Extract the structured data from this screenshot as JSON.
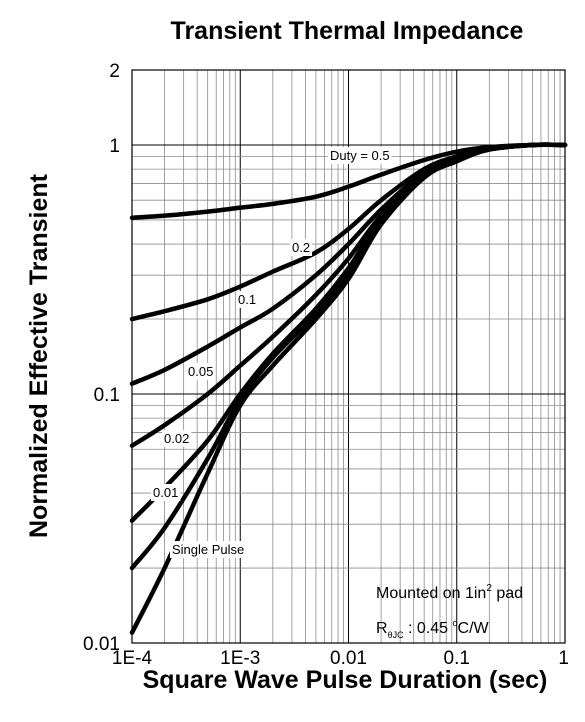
{
  "chart_data": {
    "type": "line",
    "title": "Transient Thermal Impedance",
    "xlabel": "Square Wave Pulse Duration (sec)",
    "ylabel": "Normalized Effective Transient",
    "x_scale": "log",
    "y_scale": "log",
    "xlim": [
      0.0001,
      1
    ],
    "ylim": [
      0.01,
      2
    ],
    "grid": true,
    "x_ticks": [
      "1E-4",
      "1E-3",
      "0.01",
      "0.1",
      "1"
    ],
    "y_ticks": [
      "0.01",
      "0.1",
      "1",
      "2"
    ],
    "series": [
      {
        "name": "Duty = 0.5",
        "x": [
          0.0001,
          0.0002,
          0.0005,
          0.001,
          0.002,
          0.005,
          0.01,
          0.02,
          0.05,
          0.1,
          0.2,
          0.5,
          1
        ],
        "y": [
          0.51,
          0.52,
          0.54,
          0.56,
          0.58,
          0.62,
          0.68,
          0.76,
          0.87,
          0.94,
          0.98,
          1.0,
          1.0
        ]
      },
      {
        "name": "0.2",
        "x": [
          0.0001,
          0.0002,
          0.0005,
          0.001,
          0.002,
          0.005,
          0.01,
          0.02,
          0.05,
          0.1,
          0.2,
          0.5,
          1
        ],
        "y": [
          0.2,
          0.215,
          0.24,
          0.27,
          0.31,
          0.37,
          0.46,
          0.6,
          0.8,
          0.9,
          0.97,
          1.0,
          1.0
        ]
      },
      {
        "name": "0.1",
        "x": [
          0.0001,
          0.0002,
          0.0005,
          0.001,
          0.002,
          0.005,
          0.01,
          0.02,
          0.05,
          0.1,
          0.2,
          0.5,
          1
        ],
        "y": [
          0.11,
          0.125,
          0.155,
          0.185,
          0.22,
          0.3,
          0.4,
          0.55,
          0.78,
          0.89,
          0.96,
          1.0,
          1.0
        ]
      },
      {
        "name": "0.05",
        "x": [
          0.0001,
          0.0002,
          0.0005,
          0.001,
          0.002,
          0.005,
          0.01,
          0.02,
          0.05,
          0.1,
          0.2,
          0.5,
          1
        ],
        "y": [
          0.062,
          0.075,
          0.1,
          0.13,
          0.17,
          0.25,
          0.35,
          0.52,
          0.76,
          0.88,
          0.96,
          1.0,
          1.0
        ]
      },
      {
        "name": "0.02",
        "x": [
          0.0001,
          0.0002,
          0.0005,
          0.001,
          0.002,
          0.005,
          0.01,
          0.02,
          0.05,
          0.1,
          0.2,
          0.5,
          1
        ],
        "y": [
          0.031,
          0.042,
          0.065,
          0.1,
          0.145,
          0.22,
          0.32,
          0.5,
          0.75,
          0.87,
          0.96,
          1.0,
          1.0
        ]
      },
      {
        "name": "0.01",
        "x": [
          0.0001,
          0.0002,
          0.0005,
          0.001,
          0.002,
          0.005,
          0.01,
          0.02,
          0.05,
          0.1,
          0.2,
          0.5,
          1
        ],
        "y": [
          0.02,
          0.029,
          0.055,
          0.095,
          0.14,
          0.21,
          0.3,
          0.49,
          0.74,
          0.87,
          0.96,
          1.0,
          1.0
        ]
      },
      {
        "name": "Single Pulse",
        "x": [
          0.0001,
          0.0002,
          0.0005,
          0.001,
          0.002,
          0.005,
          0.01,
          0.02,
          0.05,
          0.1,
          0.2,
          0.5,
          1
        ],
        "y": [
          0.011,
          0.02,
          0.048,
          0.09,
          0.13,
          0.2,
          0.29,
          0.48,
          0.74,
          0.86,
          0.96,
          1.0,
          1.0
        ]
      }
    ],
    "annotation": {
      "mounted_prefix": "Mounted on 1in",
      "mounted_sup": "2",
      "mounted_suffix": " pad",
      "r_main": "R",
      "r_sub": "θJC",
      "r_value": " : 0.45 ",
      "r_deg": "o",
      "r_unit": "C/W"
    }
  }
}
